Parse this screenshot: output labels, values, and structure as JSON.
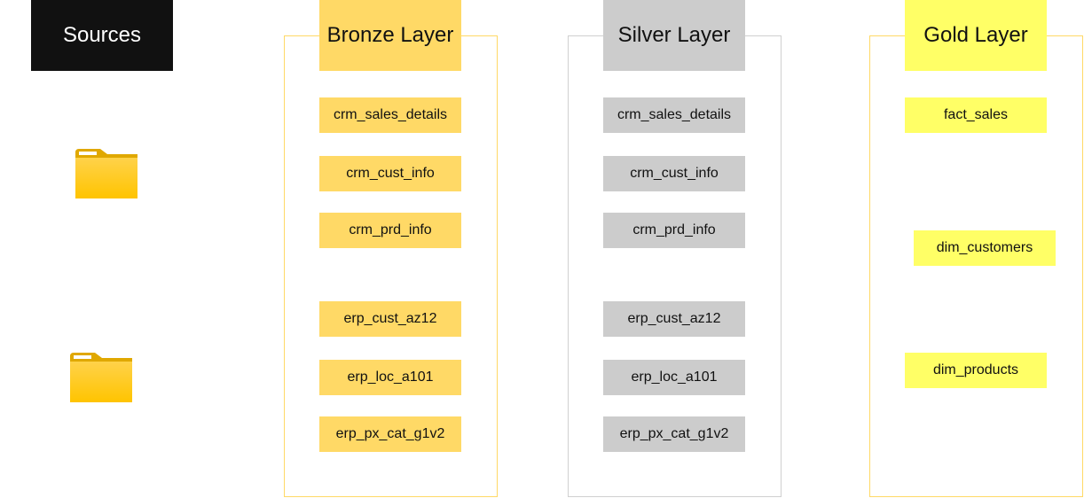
{
  "sources": {
    "title": "Sources",
    "folders": [
      {
        "icon": "folder-icon"
      },
      {
        "icon": "folder-icon"
      }
    ]
  },
  "bronze": {
    "title": "Bronze Layer",
    "color": "#ffd966",
    "tables": [
      "crm_sales_details",
      "crm_cust_info",
      "crm_prd_info",
      "erp_cust_az12",
      "erp_loc_a101",
      "erp_px_cat_g1v2"
    ]
  },
  "silver": {
    "title": "Silver Layer",
    "color": "#cccccc",
    "tables": [
      "crm_sales_details",
      "crm_cust_info",
      "crm_prd_info",
      "erp_cust_az12",
      "erp_loc_a101",
      "erp_px_cat_g1v2"
    ]
  },
  "gold": {
    "title": "Gold Layer",
    "color": "#ffff66",
    "tables": [
      "fact_sales",
      "dim_customers",
      "dim_products"
    ]
  }
}
